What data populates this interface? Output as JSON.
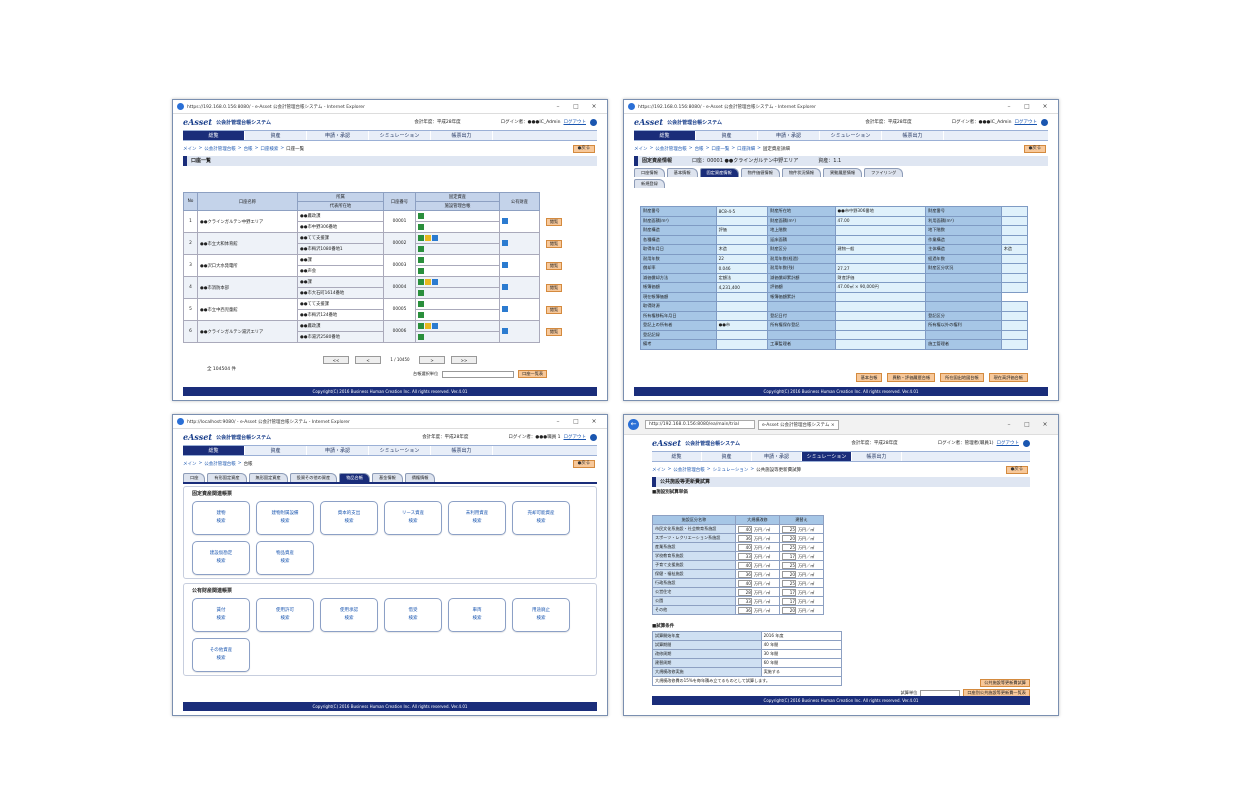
{
  "common": {
    "logo": "eAsset",
    "system": "公会計管理台帳システム",
    "fiscal": "会計年度：平成28年度",
    "login_prefix": "ログイン者：",
    "logout": "ログアウト",
    "back": "●戻る",
    "footer": "Copyright(C) 2016 Business Human Creation Inc. All rights reserved. Ver.4.01",
    "nav": [
      "総覧",
      "資産",
      "申請・承認",
      "シミュレーション",
      "帳票出力"
    ]
  },
  "w1": {
    "titlebar": "https://192.168.0.156:8080/ - e-Asset 公会計管理台帳システム - Internet Explorer",
    "login_user": "●●●IC_Admin",
    "breadcrumb": [
      "メイン",
      "公会計管理台帳",
      "台帳",
      "口座検索",
      "口座一覧"
    ],
    "title": "口座一覧",
    "headers": [
      "No",
      "口座名称",
      "所属",
      "口座番号",
      "固定資産",
      "資産情報",
      "公有財産"
    ],
    "subheaders": [
      "代表所在地",
      "施設管理台帳"
    ],
    "rows": [
      {
        "no": "1",
        "name": "●●クラインガルテン中野エリア",
        "a": "●●農政課",
        "b": "●●市中野306番地",
        "num": "00001"
      },
      {
        "no": "2",
        "name": "●●市立大和体育館",
        "a": "●●てて支援課",
        "b": "●●市梅沢1080番地1",
        "num": "00002"
      },
      {
        "no": "3",
        "name": "●●沢口大水発電所",
        "a": "●●課",
        "b": "●●声会",
        "num": "00003"
      },
      {
        "no": "4",
        "name": "●●市消防本部",
        "a": "●●課",
        "b": "●●市大石町1614番地",
        "num": "00004"
      },
      {
        "no": "5",
        "name": "●●市立中西児童館",
        "a": "●●てて支援課",
        "b": "●●市梅沢124番地",
        "num": "00005"
      },
      {
        "no": "6",
        "name": "●●クラインガルテン湯沢エリア",
        "a": "●●農政課",
        "b": "●●市湯沢2580番地",
        "num": "00006"
      }
    ],
    "btn": "閲覧",
    "pager": [
      "<<",
      "<",
      "1 / 10450",
      ">",
      ">>"
    ],
    "count": "全 104504 件",
    "sel_label": "台帳選択単位",
    "list_btn": "口座一覧表"
  },
  "w2": {
    "titlebar": "https://192.168.0.156:8080/ - e-Asset 公会計管理台帳システム - Internet Explorer",
    "login_user": "●●●IC_Admin",
    "breadcrumb": [
      "メイン",
      "公会計管理台帳",
      "台帳",
      "口座一覧",
      "口座詳細",
      "固定資産詳細"
    ],
    "title": "固定資産情報",
    "kouza": "口座：00001 ●●クラインガルテン中野エリア",
    "kubun": "資産：1.1",
    "tabs": [
      "口座情報",
      "基本情報",
      "固定資産情報",
      "物件価値情報",
      "物件状況情報",
      "異動履歴情報",
      "ファイリング",
      "新規登録"
    ],
    "grid": [
      [
        "財産番号",
        "8C8-4-5",
        "財産所在地",
        "●●市中野306番地",
        "財産番号",
        ""
      ],
      [
        "財産面積(m²)",
        "",
        "財産面積(m²)",
        "47.00",
        "利用面積(m²)",
        ""
      ],
      [
        "財産構造",
        "評価",
        "地上階数",
        "",
        "地下階数",
        ""
      ],
      [
        "各種構造",
        "",
        "延床面積",
        "",
        "作業構造",
        ""
      ],
      [
        "取得年月日",
        "木造",
        "財産区分",
        "建物一般",
        "主体構造",
        "木造"
      ],
      [
        "耐用年数",
        "22",
        "耐用年数(経過)",
        "",
        "経過年数",
        ""
      ],
      [
        "償却率",
        "0.046",
        "耐用年数(残)",
        "27.27",
        "財産区分状況",
        ""
      ],
      [
        "減価償却方法",
        "定額法",
        "減価償却累計額",
        "財産評価",
        "",
        ""
      ],
      [
        "帳簿価額",
        "4,231,400",
        "評価額",
        "47.00㎡ × 90,000円",
        "",
        ""
      ],
      [
        "現在帳簿価額",
        "",
        "帳簿価額累計",
        "",
        ""
      ],
      [
        "取得財源",
        "",
        "",
        "",
        "",
        ""
      ],
      [
        "所有権移転年月日",
        "",
        "登記日付",
        "",
        "登記区分",
        ""
      ],
      [
        "登記上の所有者",
        "●●市",
        "所有権保存登記",
        "",
        "所有権以外の権利",
        ""
      ],
      [
        "登記記録",
        "",
        "",
        "",
        "",
        ""
      ],
      [
        "備考",
        "",
        "工事監理者",
        "",
        "施工管理者",
        ""
      ]
    ],
    "btns": [
      "基本台帳",
      "異動・評価履歴台帳",
      "所在図出地図台帳",
      "現在高評価台帳"
    ]
  },
  "w3": {
    "titlebar": "http://localhost:9080/ - e-Asset 公会計管理台帳システム - Internet Explorer",
    "login_user": "●●●職員 1",
    "breadcrumb": [
      "メイン",
      "公会計管理台帳",
      "台帳"
    ],
    "tabs": [
      "口座",
      "有形固定資産",
      "無形固定資産",
      "投資その他の資産",
      "物品台帳",
      "基金情報",
      "債権情報"
    ],
    "sec1": "固定資産関連帳票",
    "tiles1": [
      [
        "建物",
        "検索"
      ],
      [
        "建物附属設備",
        "検索"
      ],
      [
        "資本的支出",
        "検索"
      ],
      [
        "リース資産",
        "検索"
      ],
      [
        "未利用資産",
        "検索"
      ],
      [
        "売却可能資産",
        "検索"
      ],
      [
        "建設仮勘定",
        "検索"
      ],
      [
        "物品資産",
        "検索"
      ]
    ],
    "sec2": "公有財産関連帳票",
    "tiles2": [
      [
        "賃付",
        "検索"
      ],
      [
        "使用許可",
        "検索"
      ],
      [
        "使用承認",
        "検索"
      ],
      [
        "借受",
        "検索"
      ],
      [
        "車両",
        "検索"
      ],
      [
        "用途廃止",
        "検索"
      ],
      [
        "その他資産",
        "検索"
      ]
    ]
  },
  "w4": {
    "url": "http://192.168.0.156:8080/ea/main/trial",
    "tab": "e-Asset 公会計管理台帳システム ×",
    "login_user": "管理者(職員1)",
    "breadcrumb": [
      "メイン",
      "公会計管理台帳",
      "シミュレーション",
      "公共施設等更新費試算"
    ],
    "title": "公共施設等更新費試算",
    "sec1": "■施設別試算単価",
    "heads": [
      "施設区分名称",
      "大規模改修",
      "建替え"
    ],
    "rows": [
      [
        "市民文化系施設・社会教育系施設",
        "40",
        "25"
      ],
      [
        "スポーツ・レクリエーション系施設",
        "36",
        "20"
      ],
      [
        "産業系施設",
        "40",
        "25"
      ],
      [
        "学校教育系施設",
        "33",
        "17"
      ],
      [
        "子育て支援施設",
        "40",
        "25"
      ],
      [
        "保健・福祉施設",
        "36",
        "20"
      ],
      [
        "行政系施設",
        "40",
        "25"
      ],
      [
        "公営住宅",
        "28",
        "17"
      ],
      [
        "公園",
        "33",
        "17"
      ],
      [
        "その他",
        "36",
        "20"
      ]
    ],
    "unit": "万円／㎡",
    "sec2": "■試算条件",
    "conds": [
      [
        "試算開始年度",
        "2016 年度"
      ],
      [
        "試算期間",
        "40 年間"
      ],
      [
        "改修周期",
        "30 年間"
      ],
      [
        "建替周期",
        "60 年間"
      ]
    ],
    "cond_note": "大規模改修費の15%を毎年積み立てるものとして試算します。",
    "sel_label": "大規模改修実施",
    "sel_val": "実施する",
    "btn1": "公共施設等更新費試算",
    "btn2": "口座別公共施設等更新費一覧表",
    "sel2": "試算単位"
  }
}
